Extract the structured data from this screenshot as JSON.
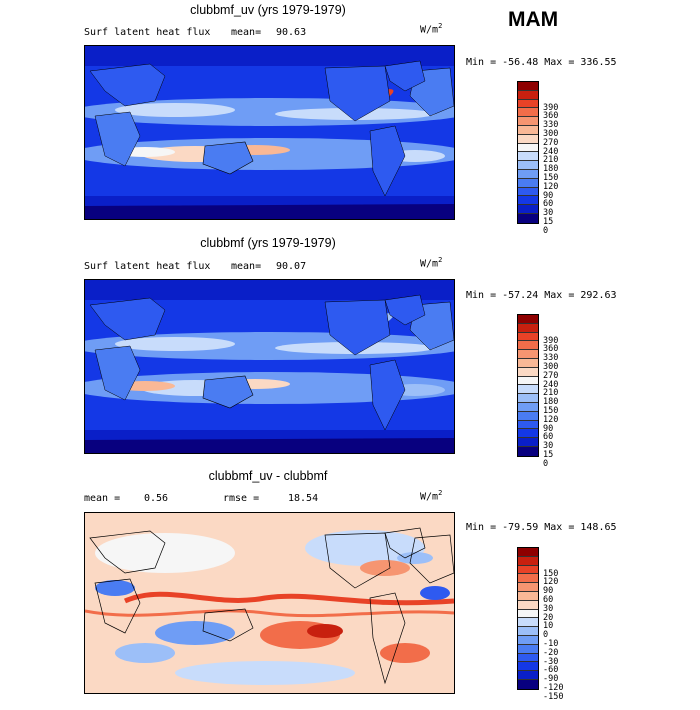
{
  "season": "MAM",
  "panels": [
    {
      "title": "clubbmf_uv (yrs 1979-1979)",
      "left_label": "Surf latent heat flux",
      "stat_label": "mean=",
      "stat_value": "90.63",
      "units": "W/m",
      "units_sup": "2",
      "minmax": "Min = -56.48 Max = 336.55",
      "colors": [
        "#08007f",
        "#0a1fc8",
        "#1438e6",
        "#2e5af0",
        "#4a7cf2",
        "#6f9df5",
        "#9cbff8",
        "#c8dcfb",
        "#f6f6f6",
        "#fbd9c4",
        "#f9b896",
        "#f69571",
        "#f26d4a",
        "#e84227",
        "#c8200f",
        "#8e0000"
      ],
      "levels": [
        "390",
        "360",
        "330",
        "300",
        "270",
        "240",
        "210",
        "180",
        "150",
        "120",
        "90",
        "60",
        "30",
        "15",
        "0"
      ]
    },
    {
      "title": "clubbmf (yrs 1979-1979)",
      "left_label": "Surf latent heat flux",
      "stat_label": "mean=",
      "stat_value": "90.07",
      "units": "W/m",
      "units_sup": "2",
      "minmax": "Min = -57.24 Max = 292.63",
      "colors": [
        "#08007f",
        "#0a1fc8",
        "#1438e6",
        "#2e5af0",
        "#4a7cf2",
        "#6f9df5",
        "#9cbff8",
        "#c8dcfb",
        "#f6f6f6",
        "#fbd9c4",
        "#f9b896",
        "#f69571",
        "#f26d4a",
        "#e84227",
        "#c8200f",
        "#8e0000"
      ],
      "levels": [
        "390",
        "360",
        "330",
        "300",
        "270",
        "240",
        "210",
        "180",
        "150",
        "120",
        "90",
        "60",
        "30",
        "15",
        "0"
      ]
    },
    {
      "title": "clubbmf_uv - clubbmf",
      "left_label": "mean =",
      "left_value": "0.56",
      "stat_label": "rmse =",
      "stat_value": "18.54",
      "units": "W/m",
      "units_sup": "2",
      "minmax": "Min = -79.59 Max = 148.65",
      "colors": [
        "#08007f",
        "#0a1fc8",
        "#1438e6",
        "#2e5af0",
        "#4a7cf2",
        "#6f9df5",
        "#9cbff8",
        "#c8dcfb",
        "#f6f6f6",
        "#fbd9c4",
        "#f9b896",
        "#f69571",
        "#f26d4a",
        "#e84227",
        "#c8200f",
        "#8e0000"
      ],
      "levels": [
        "150",
        "120",
        "90",
        "60",
        "30",
        "20",
        "10",
        "0",
        "-10",
        "-20",
        "-30",
        "-60",
        "-90",
        "-120",
        "-150"
      ]
    }
  ]
}
